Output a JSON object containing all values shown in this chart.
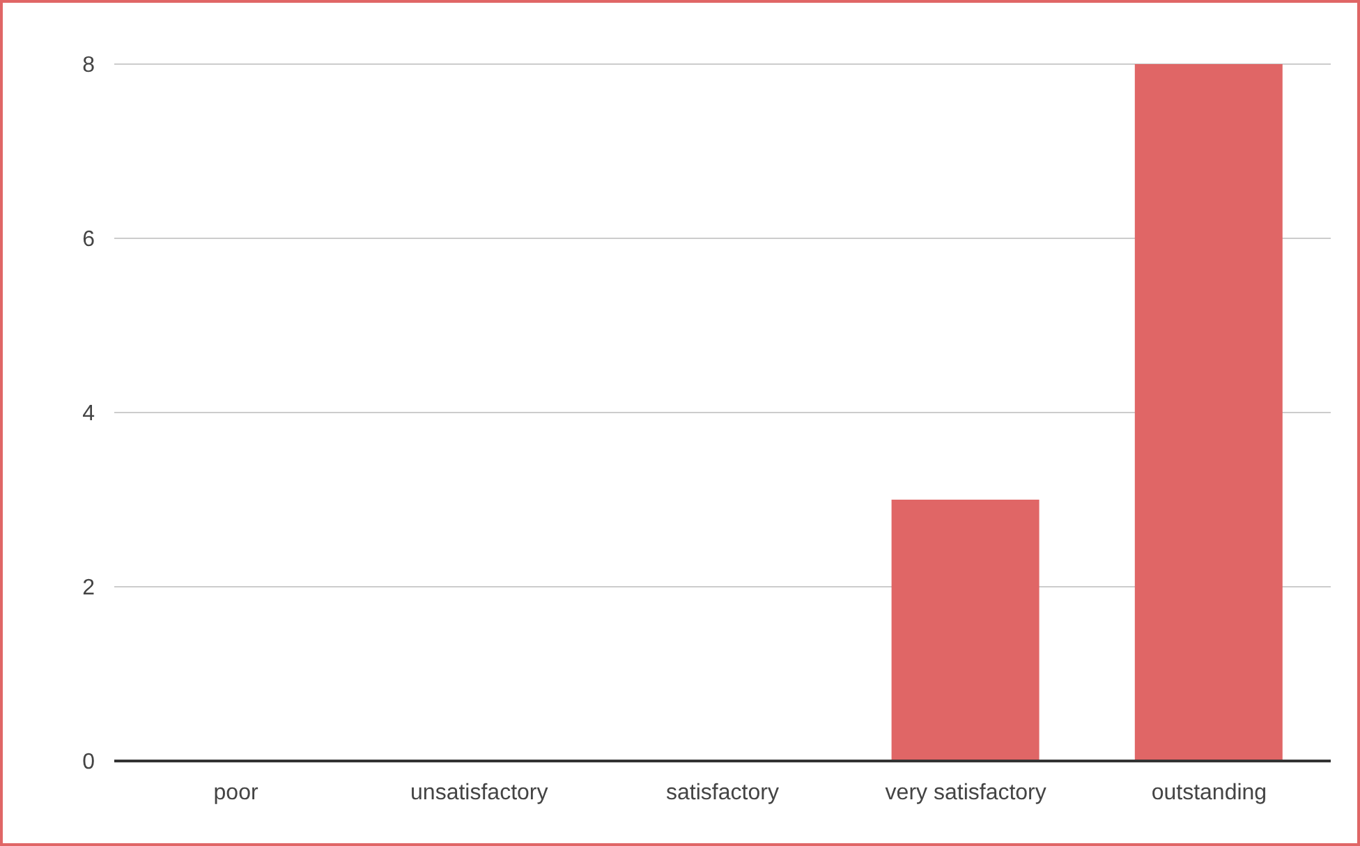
{
  "chart_data": {
    "type": "bar",
    "categories": [
      "poor",
      "unsatisfactory",
      "satisfactory",
      "very satisfactory",
      "outstanding"
    ],
    "values": [
      0,
      0,
      0,
      3,
      8
    ],
    "color": "#e06666",
    "ylim": [
      0,
      8
    ],
    "yticks": [
      0,
      2,
      4,
      6,
      8
    ],
    "grid": "y"
  }
}
